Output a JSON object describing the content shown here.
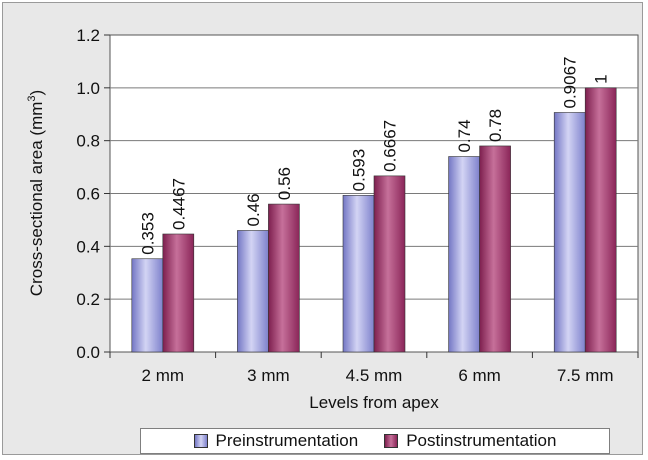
{
  "chart_data": {
    "type": "bar",
    "title": "",
    "xlabel": "Levels from apex",
    "ylabel": "Cross-sectional area (mm³)",
    "ylabel_main": "Cross-sectional area (mm",
    "ylabel_sup": "3",
    "ylabel_end": ")",
    "categories": [
      "2 mm",
      "3 mm",
      "4.5 mm",
      "6 mm",
      "7.5 mm"
    ],
    "ylim": [
      0,
      1.2
    ],
    "yticks": [
      "0.0",
      "0.2",
      "0.4",
      "0.6",
      "0.8",
      "1.0",
      "1.2"
    ],
    "grid": true,
    "legend_position": "bottom",
    "series": [
      {
        "name": "Preinstrumentation",
        "values": [
          0.353,
          0.46,
          0.593,
          0.74,
          0.9067
        ],
        "labels": [
          "0.353",
          "0.46",
          "0.593",
          "0.74",
          "0.9067"
        ],
        "color": "#8c8fd6"
      },
      {
        "name": "Postinstrumentation",
        "values": [
          0.4467,
          0.56,
          0.6667,
          0.78,
          1
        ],
        "labels": [
          "0.4467",
          "0.56",
          "0.6667",
          "0.78",
          "1"
        ],
        "color": "#9c2f66"
      }
    ]
  }
}
